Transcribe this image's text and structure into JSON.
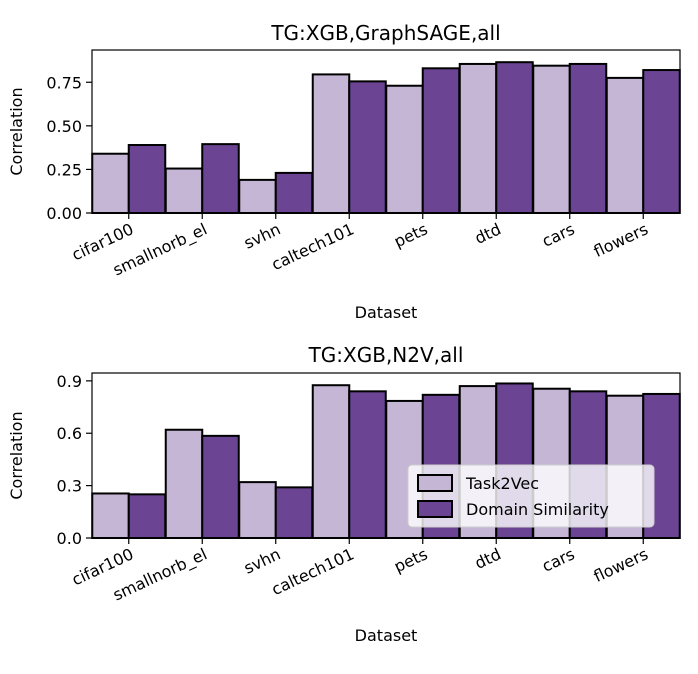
{
  "chart_data": [
    {
      "type": "bar",
      "title": "TG:XGB,GraphSAGE,all",
      "xlabel": "Dataset",
      "ylabel": "Correlation",
      "categories": [
        "cifar100",
        "smallnorb_el",
        "svhn",
        "caltech101",
        "pets",
        "dtd",
        "cars",
        "flowers"
      ],
      "series": [
        {
          "name": "Task2Vec",
          "values": [
            0.34,
            0.255,
            0.19,
            0.795,
            0.73,
            0.855,
            0.845,
            0.775
          ]
        },
        {
          "name": "Domain Similarity",
          "values": [
            0.39,
            0.395,
            0.23,
            0.755,
            0.83,
            0.865,
            0.855,
            0.82
          ]
        }
      ],
      "yticks": [
        "0.00",
        "0.25",
        "0.50",
        "0.75"
      ],
      "ytick_values": [
        0,
        0.25,
        0.5,
        0.75
      ],
      "ylim": [
        0,
        0.935
      ],
      "legend": "none"
    },
    {
      "type": "bar",
      "title": "TG:XGB,N2V,all",
      "xlabel": "Dataset",
      "ylabel": "Correlation",
      "categories": [
        "cifar100",
        "smallnorb_el",
        "svhn",
        "caltech101",
        "pets",
        "dtd",
        "cars",
        "flowers"
      ],
      "series": [
        {
          "name": "Task2Vec",
          "values": [
            0.255,
            0.62,
            0.32,
            0.875,
            0.785,
            0.87,
            0.855,
            0.815
          ]
        },
        {
          "name": "Domain Similarity",
          "values": [
            0.25,
            0.585,
            0.29,
            0.84,
            0.82,
            0.885,
            0.84,
            0.825
          ]
        }
      ],
      "yticks": [
        "0.0",
        "0.3",
        "0.6",
        "0.9"
      ],
      "ytick_values": [
        0,
        0.3,
        0.6,
        0.9
      ],
      "ylim": [
        0,
        0.945
      ],
      "legend": "lower-right"
    }
  ],
  "colors": {
    "task2vec": "#c6b6d6",
    "domain_similarity": "#6b4594",
    "edge": "#000000"
  }
}
